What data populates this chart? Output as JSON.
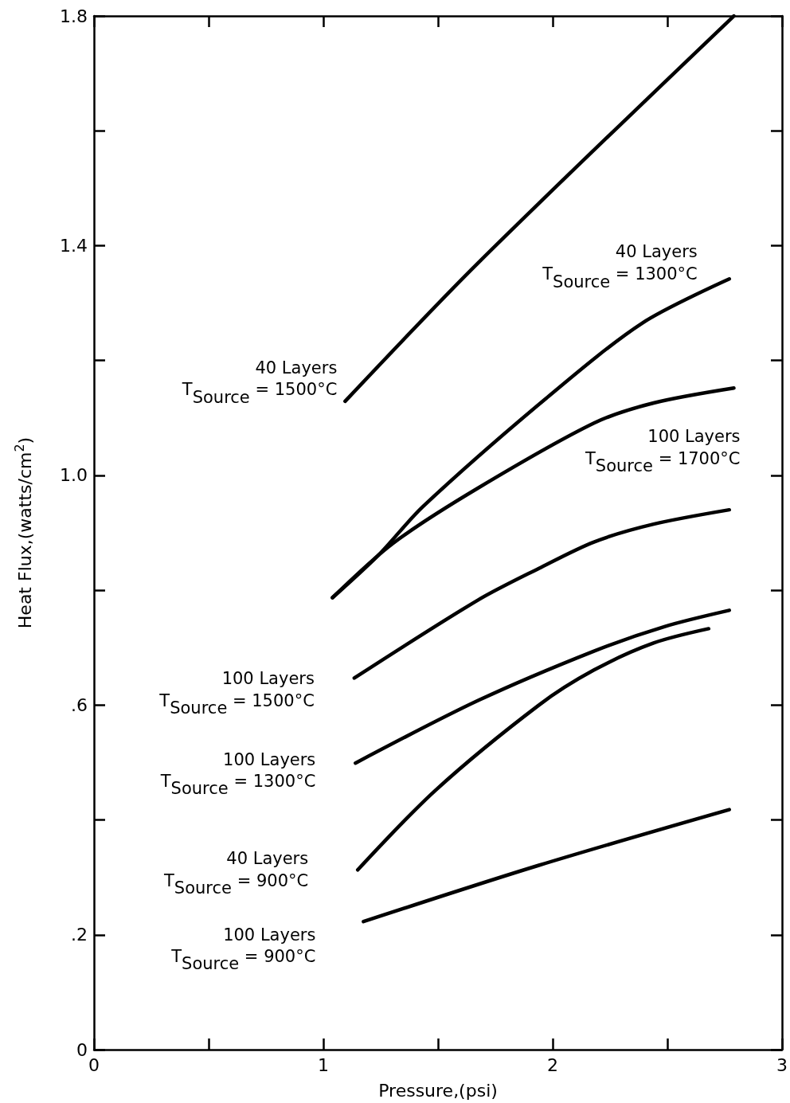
{
  "chart_data": {
    "type": "line",
    "xlabel": "Pressure,(psi)",
    "ylabel": "Heat Flux,(watts/cm$^{2}$)",
    "xlim": [
      0,
      3
    ],
    "xticks": [
      0,
      {
        "value": 0.5,
        "label": null
      },
      1,
      {
        "value": 1.5,
        "label": null
      },
      2,
      {
        "value": 2.5,
        "label": null
      },
      3
    ],
    "ylim": [
      0,
      1.8
    ],
    "yticks": [
      0,
      {
        "value": 0.2,
        "label": ".2"
      },
      {
        "value": 0.4,
        "label": null
      },
      {
        "value": 0.6,
        "label": ".6"
      },
      {
        "value": 0.8,
        "label": null
      },
      {
        "value": 1,
        "label": "1.0"
      },
      {
        "value": 1.2,
        "label": null
      },
      1.4,
      {
        "value": 1.6,
        "label": null
      },
      1.8
    ],
    "grid": false,
    "legend": false,
    "marker": "none",
    "line_style": "solid",
    "series": [
      {
        "name": "40 Layers T$_{Source}$ = 1500°C",
        "color": "#000000",
        "x": [
          1.095,
          1.675,
          2.79
        ],
        "values": [
          1.129,
          1.37,
          1.8
        ]
      },
      {
        "name": "40 Layers T$_{Source}$ = 1300°C",
        "color": "#000000",
        "x": [
          1.04,
          1.24,
          1.435,
          1.965,
          2.39,
          2.77
        ],
        "values": [
          0.787,
          0.861,
          0.946,
          1.132,
          1.265,
          1.342
        ]
      },
      {
        "name": "100 Layers T$_{Source}$ = 1700°C",
        "color": "#000000",
        "x": [
          1.04,
          1.305,
          1.675,
          2.18,
          2.44,
          2.79
        ],
        "values": [
          0.787,
          0.882,
          0.978,
          1.091,
          1.126,
          1.152
        ]
      },
      {
        "name": "100 Layers T$_{Source}$ = 1500°C",
        "color": "#000000",
        "x": [
          1.135,
          1.675,
          1.94,
          2.18,
          2.44,
          2.77
        ],
        "values": [
          0.647,
          0.783,
          0.838,
          0.884,
          0.915,
          0.94
        ]
      },
      {
        "name": "100 Layers T$_{Source}$ = 1300°C",
        "color": "#000000",
        "x": [
          1.14,
          1.675,
          2.18,
          2.49,
          2.77
        ],
        "values": [
          0.499,
          0.608,
          0.694,
          0.737,
          0.765
        ]
      },
      {
        "name": "40 Layers T$_{Source}$ = 900°C",
        "color": "#000000",
        "x": [
          1.15,
          1.49,
          1.94,
          2.18,
          2.44,
          2.68
        ],
        "values": [
          0.313,
          0.452,
          0.6,
          0.661,
          0.708,
          0.733
        ]
      },
      {
        "name": "100 Layers T$_{Source}$ = 900°C",
        "color": "#000000",
        "x": [
          1.175,
          1.94,
          2.77
        ],
        "values": [
          0.223,
          0.321,
          0.418
        ]
      }
    ]
  }
}
